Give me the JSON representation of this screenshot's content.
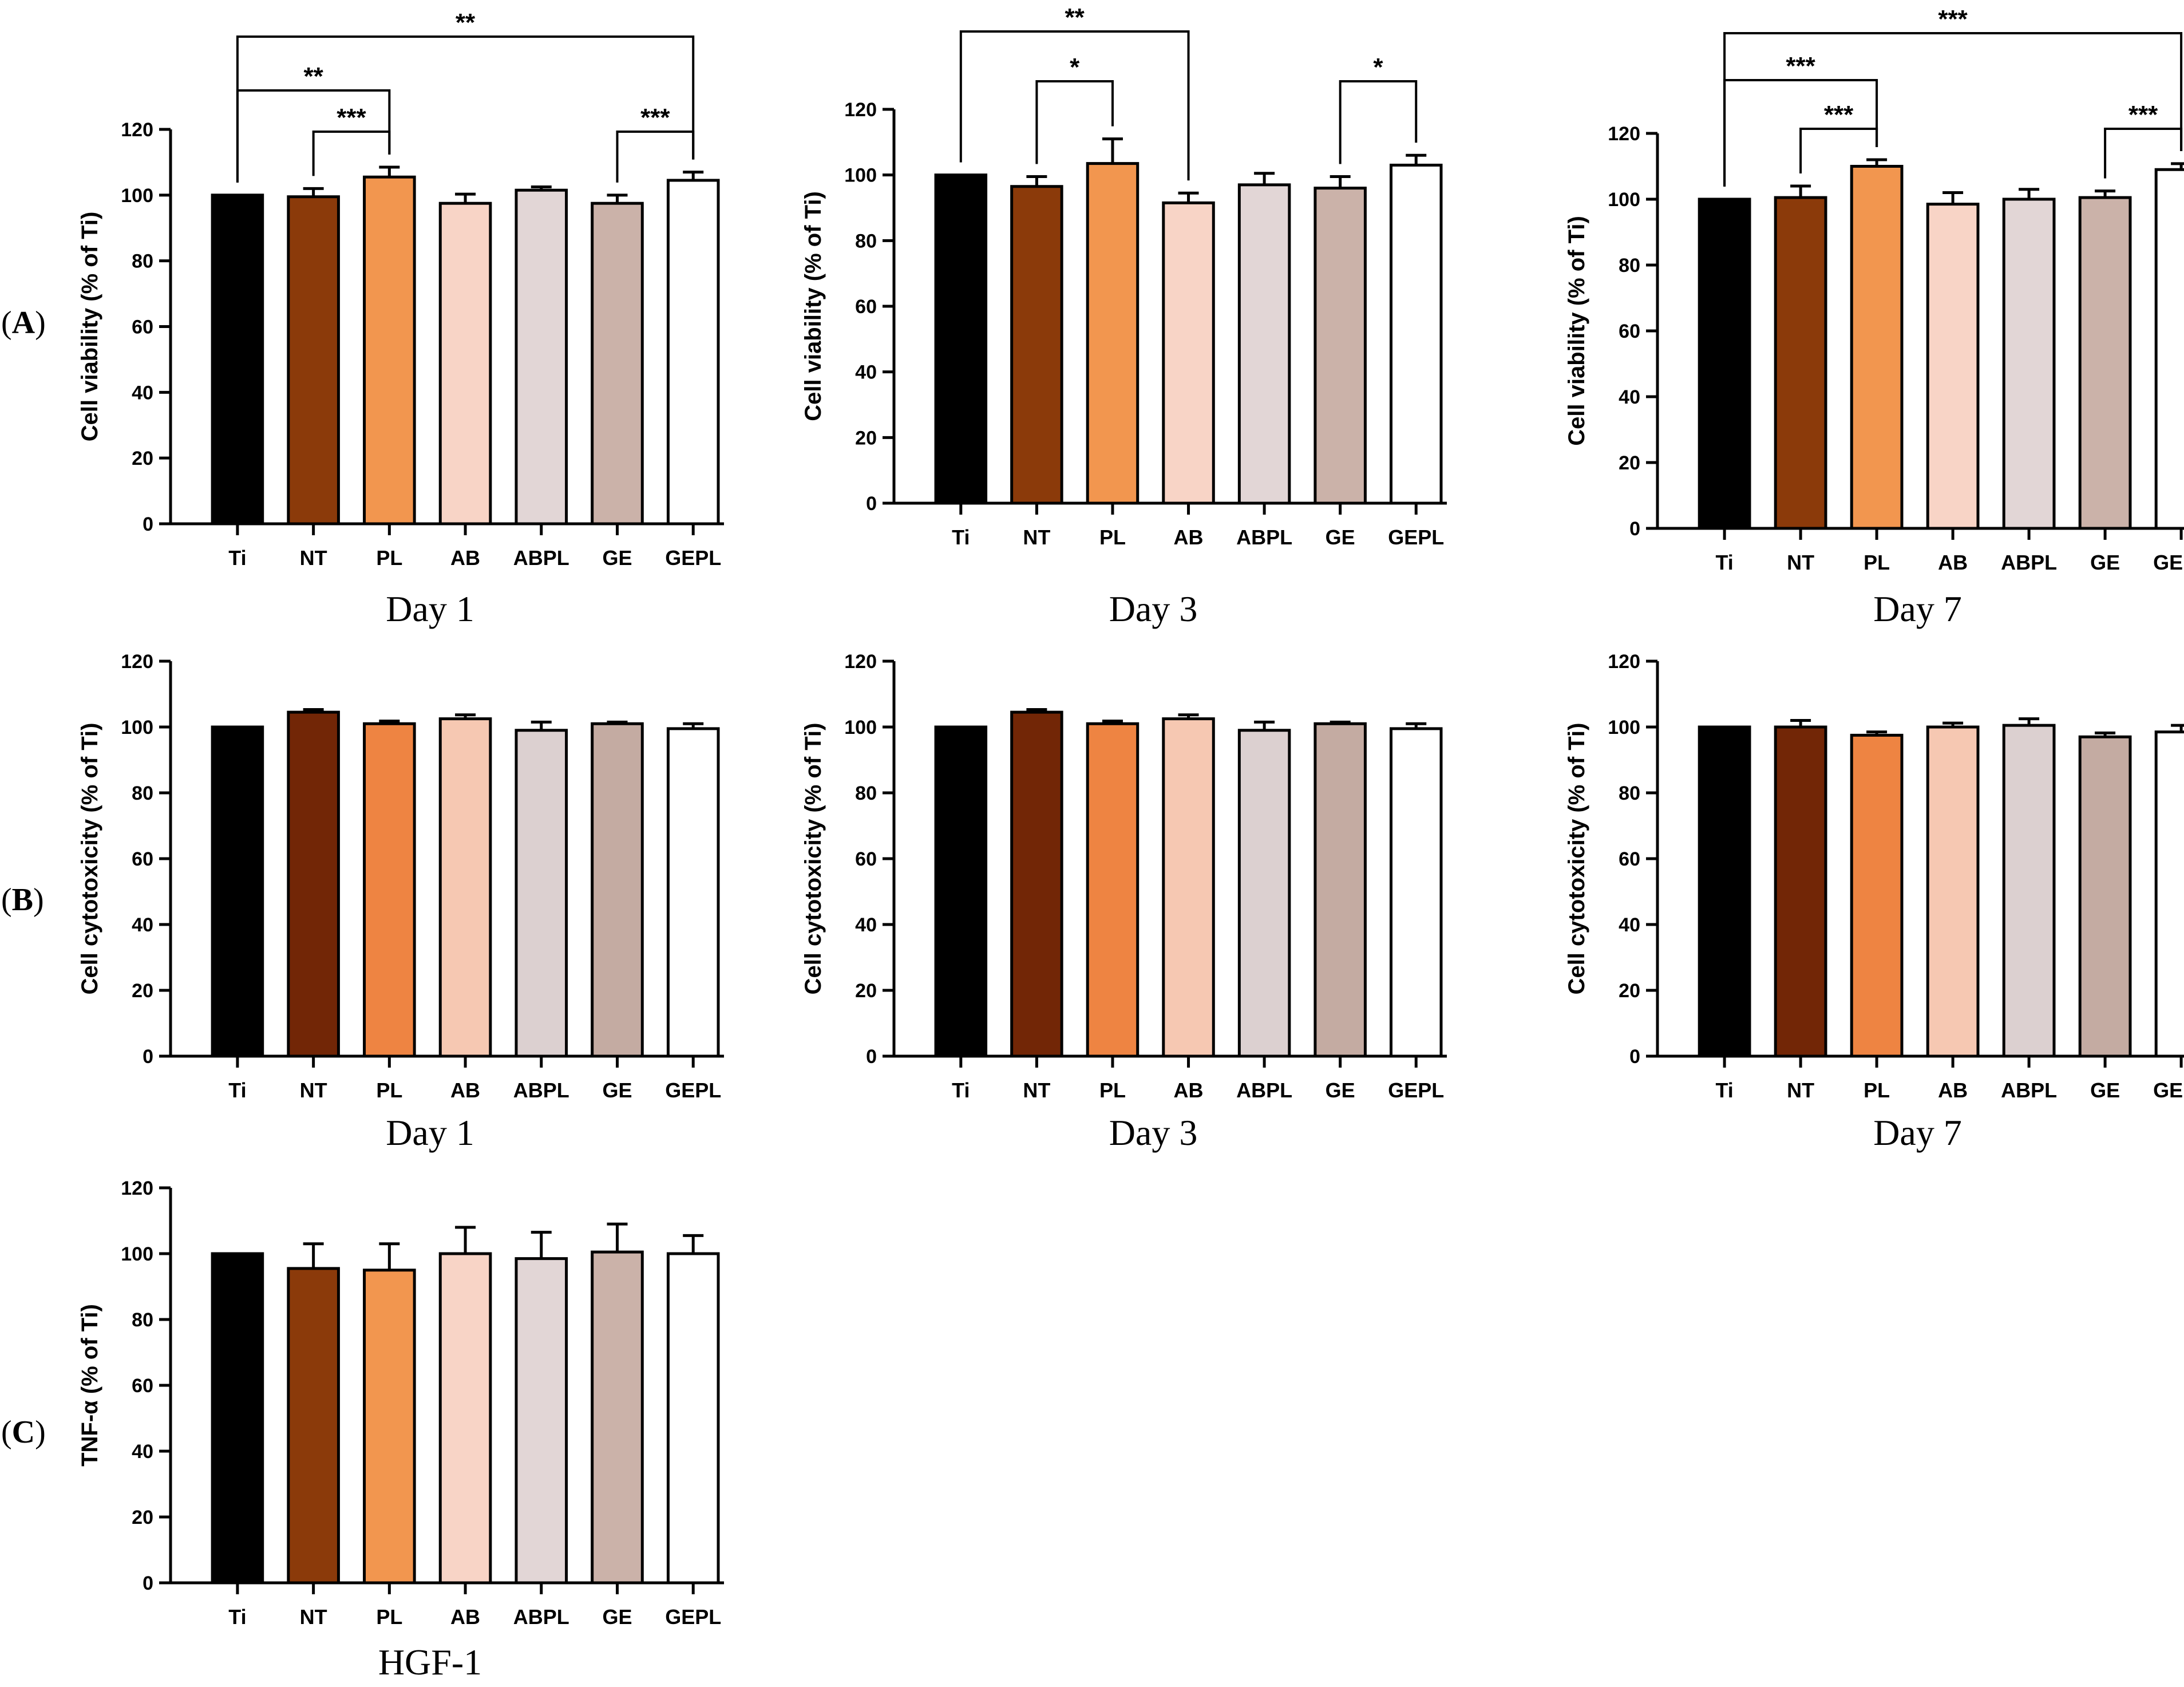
{
  "panel_labels": [
    {
      "open": "(",
      "letter": "A",
      "close": ")"
    },
    {
      "open": "(",
      "letter": "B",
      "close": ")"
    },
    {
      "open": "(",
      "letter": "C",
      "close": ")"
    }
  ],
  "colors": {
    "viability": [
      "#000000",
      "#8B3A0A",
      "#F2964F",
      "#F8D4C6",
      "#E2D6D6",
      "#CBB2A9",
      "#FFFFFF"
    ],
    "cytotoxicity": [
      "#000000",
      "#722606",
      "#EE8442",
      "#F6C8B2",
      "#DCD0D0",
      "#C4ABA2",
      "#FFFFFF"
    ],
    "tnf": [
      "#000000",
      "#8B3A0A",
      "#F2964F",
      "#F8D4C6",
      "#E2D6D6",
      "#CBB2A9",
      "#FFFFFF"
    ]
  },
  "chart_data": [
    {
      "id": "a1",
      "type": "bar",
      "caption": "Day 1",
      "categories": [
        "Ti",
        "NT",
        "PL",
        "AB",
        "ABPL",
        "GE",
        "GEPL"
      ],
      "values": [
        100,
        99.5,
        105.5,
        97.5,
        101.5,
        97.5,
        104.5
      ],
      "errors": [
        0,
        2.5,
        3,
        2.8,
        1,
        2.5,
        2.5
      ],
      "ylabel": "Cell viability (% of Ti)",
      "ylim": [
        0,
        120
      ],
      "yticks": [
        "0",
        "20",
        "40",
        "60",
        "80",
        "100",
        "120"
      ],
      "significance": [
        {
          "from": "Ti",
          "to": "PL",
          "label": "**"
        },
        {
          "from": "NT",
          "to": "PL",
          "label": "***"
        },
        {
          "from": "GE",
          "to": "GEPL",
          "label": "***"
        },
        {
          "from": "Ti",
          "to": "GEPL",
          "label": "**"
        }
      ]
    },
    {
      "id": "a3",
      "type": "bar",
      "caption": "Day 3",
      "categories": [
        "Ti",
        "NT",
        "PL",
        "AB",
        "ABPL",
        "GE",
        "GEPL"
      ],
      "values": [
        100,
        96.5,
        103.5,
        91.5,
        97,
        96,
        103
      ],
      "errors": [
        0,
        3,
        7.5,
        3,
        3.5,
        3.5,
        3
      ],
      "ylabel": "Cell viability (% of Ti)",
      "ylim": [
        0,
        120
      ],
      "yticks": [
        "0",
        "20",
        "40",
        "60",
        "80",
        "100",
        "120"
      ],
      "significance": [
        {
          "from": "NT",
          "to": "PL",
          "label": "*"
        },
        {
          "from": "GE",
          "to": "GEPL",
          "label": "*"
        },
        {
          "from": "Ti",
          "to": "AB",
          "label": "**"
        }
      ]
    },
    {
      "id": "a7",
      "type": "bar",
      "caption": "Day 7",
      "categories": [
        "Ti",
        "NT",
        "PL",
        "AB",
        "ABPL",
        "GE",
        "GEPL"
      ],
      "values": [
        100,
        100.5,
        110,
        98.5,
        100,
        100.5,
        109
      ],
      "errors": [
        0,
        3.5,
        2,
        3.5,
        3,
        2,
        1.8
      ],
      "ylabel": "Cell viability (% of Ti)",
      "ylim": [
        0,
        120
      ],
      "yticks": [
        "0",
        "20",
        "40",
        "60",
        "80",
        "100",
        "120"
      ],
      "significance": [
        {
          "from": "Ti",
          "to": "PL",
          "label": "***"
        },
        {
          "from": "NT",
          "to": "PL",
          "label": "***"
        },
        {
          "from": "GE",
          "to": "GEPL",
          "label": "***"
        },
        {
          "from": "Ti",
          "to": "GEPL",
          "label": "***"
        }
      ]
    },
    {
      "id": "b1",
      "type": "bar",
      "caption": "Day 1",
      "categories": [
        "Ti",
        "NT",
        "PL",
        "AB",
        "ABPL",
        "GE",
        "GEPL"
      ],
      "values": [
        100,
        104.5,
        101,
        102.5,
        99,
        101,
        99.5
      ],
      "errors": [
        0,
        0.8,
        0.8,
        1.2,
        2.5,
        0.5,
        1.5
      ],
      "ylabel": "Cell cytotoxicity (% of Ti)",
      "ylim": [
        0,
        120
      ],
      "yticks": [
        "0",
        "20",
        "40",
        "60",
        "80",
        "100",
        "120"
      ],
      "significance": []
    },
    {
      "id": "b3",
      "type": "bar",
      "caption": "Day 3",
      "categories": [
        "Ti",
        "NT",
        "PL",
        "AB",
        "ABPL",
        "GE",
        "GEPL"
      ],
      "values": [
        100,
        104.5,
        101,
        102.5,
        99,
        101,
        99.5
      ],
      "errors": [
        0,
        0.8,
        0.8,
        1.2,
        2.5,
        0.5,
        1.5
      ],
      "ylabel": "Cell cytotoxicity (% of Ti)",
      "ylim": [
        0,
        120
      ],
      "yticks": [
        "0",
        "20",
        "40",
        "60",
        "80",
        "100",
        "120"
      ],
      "significance": []
    },
    {
      "id": "b7",
      "type": "bar",
      "caption": "Day 7",
      "categories": [
        "Ti",
        "NT",
        "PL",
        "AB",
        "ABPL",
        "GE",
        "GEPL"
      ],
      "values": [
        100,
        100,
        97.5,
        100,
        100.5,
        97,
        98.5
      ],
      "errors": [
        0,
        2,
        1,
        1.2,
        2,
        1.2,
        2
      ],
      "ylabel": "Cell cytotoxicity (% of Ti)",
      "ylim": [
        0,
        120
      ],
      "yticks": [
        "0",
        "20",
        "40",
        "60",
        "80",
        "100",
        "120"
      ],
      "significance": []
    },
    {
      "id": "c1",
      "type": "bar",
      "caption": "HGF-1",
      "categories": [
        "Ti",
        "NT",
        "PL",
        "AB",
        "ABPL",
        "GE",
        "GEPL"
      ],
      "values": [
        100,
        95.5,
        95,
        100,
        98.5,
        100.5,
        100
      ],
      "errors": [
        0,
        7.5,
        8,
        8,
        8,
        8.5,
        5.5
      ],
      "ylabel": "TNF-α (% of Ti)",
      "ylim": [
        0,
        120
      ],
      "yticks": [
        "0",
        "20",
        "40",
        "60",
        "80",
        "100",
        "120"
      ],
      "significance": []
    }
  ]
}
